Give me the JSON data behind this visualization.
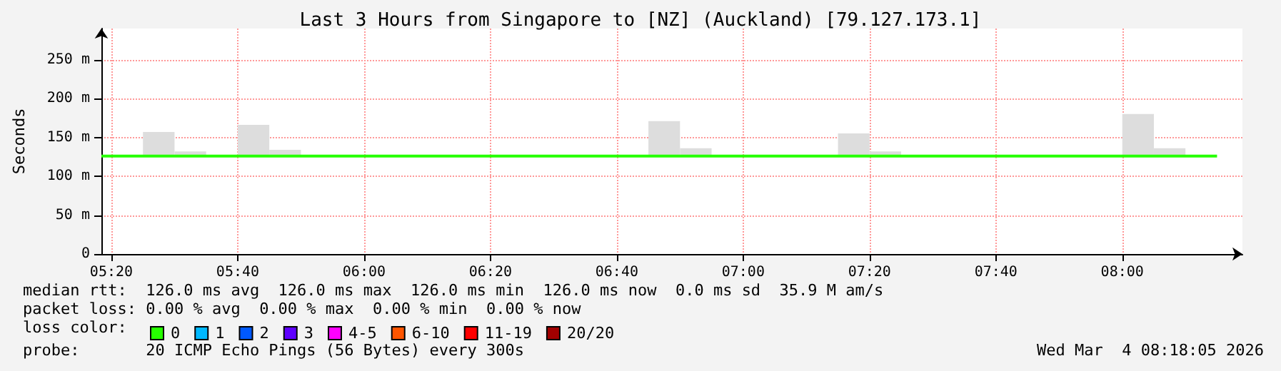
{
  "chart_data": {
    "type": "line",
    "title": "Last 3 Hours from Singapore to [NZ] (Auckland) [79.127.173.1]",
    "ylabel": "Seconds",
    "xlim": [
      5.307,
      8.317
    ],
    "xticks": [
      {
        "value": 5.3333,
        "label": "05:20"
      },
      {
        "value": 5.6667,
        "label": "05:40"
      },
      {
        "value": 6,
        "label": "06:00"
      },
      {
        "value": 6.3333,
        "label": "06:20"
      },
      {
        "value": 6.6667,
        "label": "06:40"
      },
      {
        "value": 7,
        "label": "07:00"
      },
      {
        "value": 7.3333,
        "label": "07:20"
      },
      {
        "value": 7.6667,
        "label": "07:40"
      },
      {
        "value": 8,
        "label": "08:00"
      }
    ],
    "ylim": [
      0,
      290
    ],
    "yticks": [
      0,
      {
        "value": 50,
        "label": "50 m"
      },
      {
        "value": 100,
        "label": "100 m"
      },
      {
        "value": 150,
        "label": "150 m"
      },
      {
        "value": 200,
        "label": "200 m"
      },
      {
        "value": 250,
        "label": "250 m"
      }
    ],
    "grid": true,
    "legend": "bottom",
    "legend_title": "loss color:",
    "series": [
      {
        "type": "bar",
        "color": "#dddddd",
        "x": [
          5.4583,
          5.5417,
          5.7083,
          5.7917,
          6.7917,
          6.875,
          7.2917,
          7.375,
          8.0417,
          8.125
        ],
        "base": [
          126,
          126,
          126,
          126,
          126,
          126,
          126,
          126,
          126,
          126
        ],
        "values": [
          31,
          6,
          40,
          8,
          45,
          10,
          29,
          6,
          54,
          10
        ]
      },
      {
        "name": "0",
        "color": "#26ff00",
        "x": [
          5.307,
          8.25
        ],
        "values": [
          126,
          126
        ]
      },
      {
        "name": "1",
        "color": "#00b8ff"
      },
      {
        "name": "2",
        "color": "#0059ff"
      },
      {
        "name": "3",
        "color": "#5e00ff"
      },
      {
        "name": "4-5",
        "color": "#ff00ff"
      },
      {
        "name": "6-10",
        "color": "#ff5500"
      },
      {
        "name": "11-19",
        "color": "#ff0000"
      },
      {
        "name": "20/20",
        "color": "#a10000"
      }
    ],
    "annotations": [
      "median rtt:  126.0 ms avg  126.0 ms max  126.0 ms min  126.0 ms now  0.0 ms sd  35.9 M am/s",
      "packet loss: 0.00 % avg  0.00 % max  0.00 % min  0.00 % now",
      "probe:       20 ICMP Echo Pings (56 Bytes) every 300s",
      "Wed Mar  4 08:18:05 2026"
    ]
  }
}
